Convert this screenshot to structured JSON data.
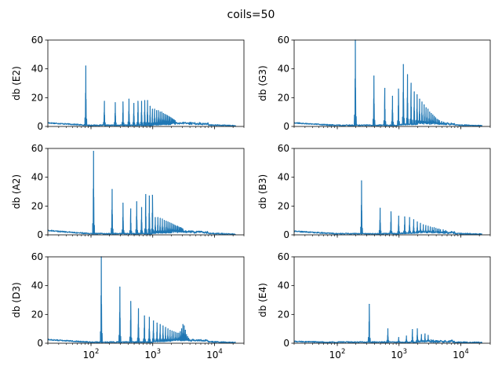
{
  "figure": {
    "title": "coils=50",
    "line_color": "#1f77b4"
  },
  "chart_data": [
    {
      "type": "line",
      "ylabel": "db (E2)",
      "xscale": "log",
      "xlim": [
        20,
        30000
      ],
      "ylim": [
        0,
        60
      ],
      "yticks": [
        0,
        20,
        40,
        60
      ],
      "xticks": [
        100,
        1000,
        10000
      ],
      "xticklabels_visible": false,
      "grid": false,
      "noise": [
        2.5,
        0.5,
        1.8
      ],
      "peaks": [
        {
          "x": 82.4,
          "y": 42
        },
        {
          "x": 164.8,
          "y": 17.5
        },
        {
          "x": 247.2,
          "y": 16.5
        },
        {
          "x": 329.6,
          "y": 17
        },
        {
          "x": 412,
          "y": 19
        },
        {
          "x": 494.4,
          "y": 16
        },
        {
          "x": 576.8,
          "y": 17.5
        },
        {
          "x": 659.2,
          "y": 17.5
        },
        {
          "x": 741.6,
          "y": 18
        },
        {
          "x": 824,
          "y": 18
        },
        {
          "x": 906.4,
          "y": 14
        },
        {
          "x": 988.8,
          "y": 12
        },
        {
          "x": 1071.2,
          "y": 12
        },
        {
          "x": 1153.6,
          "y": 11
        },
        {
          "x": 1236,
          "y": 11
        },
        {
          "x": 1318.4,
          "y": 10
        },
        {
          "x": 1400.8,
          "y": 10
        },
        {
          "x": 1483.2,
          "y": 9
        },
        {
          "x": 1565.6,
          "y": 8.5
        },
        {
          "x": 1648,
          "y": 8
        },
        {
          "x": 1730.4,
          "y": 7.5
        },
        {
          "x": 1812.8,
          "y": 7
        },
        {
          "x": 1895.2,
          "y": 6.5
        },
        {
          "x": 1977.6,
          "y": 6
        },
        {
          "x": 2060,
          "y": 5.5
        },
        {
          "x": 2142.4,
          "y": 5
        },
        {
          "x": 2224.8,
          "y": 4.5
        },
        {
          "x": 2307.2,
          "y": 4
        }
      ]
    },
    {
      "type": "line",
      "ylabel": "db (G3)",
      "xscale": "log",
      "xlim": [
        20,
        30000
      ],
      "ylim": [
        0,
        60
      ],
      "yticks": [
        0,
        20,
        40,
        60
      ],
      "xticks": [
        100,
        1000,
        10000
      ],
      "xticklabels_visible": false,
      "grid": false,
      "noise": [
        2.5,
        0.5,
        1.8
      ],
      "peaks": [
        {
          "x": 196,
          "y": 60
        },
        {
          "x": 392,
          "y": 35
        },
        {
          "x": 588,
          "y": 26.5
        },
        {
          "x": 784,
          "y": 21
        },
        {
          "x": 980,
          "y": 26
        },
        {
          "x": 1176,
          "y": 43
        },
        {
          "x": 1372,
          "y": 36
        },
        {
          "x": 1568,
          "y": 30
        },
        {
          "x": 1764,
          "y": 24
        },
        {
          "x": 1960,
          "y": 22
        },
        {
          "x": 2156,
          "y": 19
        },
        {
          "x": 2352,
          "y": 17
        },
        {
          "x": 2548,
          "y": 15
        },
        {
          "x": 2744,
          "y": 13
        },
        {
          "x": 2940,
          "y": 12
        },
        {
          "x": 3136,
          "y": 10
        },
        {
          "x": 3332,
          "y": 9
        },
        {
          "x": 3528,
          "y": 8
        },
        {
          "x": 3724,
          "y": 7
        },
        {
          "x": 3920,
          "y": 6
        },
        {
          "x": 4116,
          "y": 5
        },
        {
          "x": 4312,
          "y": 4.5
        },
        {
          "x": 4508,
          "y": 4
        },
        {
          "x": 4900,
          "y": 3.5
        },
        {
          "x": 5292,
          "y": 3
        }
      ]
    },
    {
      "type": "line",
      "ylabel": "db (A2)",
      "xscale": "log",
      "xlim": [
        20,
        30000
      ],
      "ylim": [
        0,
        60
      ],
      "yticks": [
        0,
        20,
        40,
        60
      ],
      "xticks": [
        100,
        1000,
        10000
      ],
      "xticklabels_visible": false,
      "grid": false,
      "noise": [
        3,
        0.5,
        1.8
      ],
      "peaks": [
        {
          "x": 110,
          "y": 58
        },
        {
          "x": 220,
          "y": 31.5
        },
        {
          "x": 330,
          "y": 22
        },
        {
          "x": 440,
          "y": 18
        },
        {
          "x": 550,
          "y": 23
        },
        {
          "x": 660,
          "y": 19
        },
        {
          "x": 770,
          "y": 28
        },
        {
          "x": 880,
          "y": 27
        },
        {
          "x": 990,
          "y": 27.5
        },
        {
          "x": 1100,
          "y": 12
        },
        {
          "x": 1210,
          "y": 12
        },
        {
          "x": 1320,
          "y": 11.5
        },
        {
          "x": 1430,
          "y": 11
        },
        {
          "x": 1540,
          "y": 10
        },
        {
          "x": 1650,
          "y": 9.5
        },
        {
          "x": 1760,
          "y": 9
        },
        {
          "x": 1870,
          "y": 8.5
        },
        {
          "x": 1980,
          "y": 8
        },
        {
          "x": 2090,
          "y": 7.5
        },
        {
          "x": 2200,
          "y": 7
        },
        {
          "x": 2310,
          "y": 6.5
        },
        {
          "x": 2420,
          "y": 6
        },
        {
          "x": 2530,
          "y": 6
        },
        {
          "x": 2640,
          "y": 5.5
        },
        {
          "x": 2750,
          "y": 5
        },
        {
          "x": 2860,
          "y": 5
        },
        {
          "x": 2970,
          "y": 4.5
        },
        {
          "x": 3080,
          "y": 4
        }
      ]
    },
    {
      "type": "line",
      "ylabel": "db (B3)",
      "xscale": "log",
      "xlim": [
        20,
        30000
      ],
      "ylim": [
        0,
        60
      ],
      "yticks": [
        0,
        20,
        40,
        60
      ],
      "xticks": [
        100,
        1000,
        10000
      ],
      "xticklabels_visible": false,
      "grid": false,
      "noise": [
        2.5,
        0.5,
        1.5
      ],
      "peaks": [
        {
          "x": 247,
          "y": 37.5
        },
        {
          "x": 494,
          "y": 18.5
        },
        {
          "x": 741,
          "y": 16
        },
        {
          "x": 988,
          "y": 13
        },
        {
          "x": 1235,
          "y": 12.5
        },
        {
          "x": 1482,
          "y": 12
        },
        {
          "x": 1729,
          "y": 10.5
        },
        {
          "x": 1976,
          "y": 9
        },
        {
          "x": 2223,
          "y": 8
        },
        {
          "x": 2470,
          "y": 7
        },
        {
          "x": 2717,
          "y": 6.5
        },
        {
          "x": 2964,
          "y": 6
        },
        {
          "x": 3211,
          "y": 5.5
        },
        {
          "x": 3458,
          "y": 5
        },
        {
          "x": 3705,
          "y": 5
        },
        {
          "x": 3952,
          "y": 4.5
        },
        {
          "x": 4199,
          "y": 4
        },
        {
          "x": 4446,
          "y": 4
        },
        {
          "x": 4693,
          "y": 3.5
        },
        {
          "x": 5187,
          "y": 3.5
        },
        {
          "x": 5681,
          "y": 3
        }
      ]
    },
    {
      "type": "line",
      "ylabel": "db (D3)",
      "xscale": "log",
      "xlim": [
        20,
        30000
      ],
      "ylim": [
        0,
        60
      ],
      "yticks": [
        0,
        20,
        40,
        60
      ],
      "xticks": [
        100,
        1000,
        10000
      ],
      "xticklabels": [
        "10^2",
        "10^3",
        "10^4"
      ],
      "xticklabels_visible": true,
      "grid": false,
      "noise": [
        2.5,
        0.5,
        1.8
      ],
      "peaks": [
        {
          "x": 146.8,
          "y": 60
        },
        {
          "x": 293.6,
          "y": 39
        },
        {
          "x": 440.4,
          "y": 29
        },
        {
          "x": 587.2,
          "y": 24
        },
        {
          "x": 734,
          "y": 19
        },
        {
          "x": 880.8,
          "y": 18
        },
        {
          "x": 1027.6,
          "y": 15.5
        },
        {
          "x": 1174.4,
          "y": 14
        },
        {
          "x": 1321.2,
          "y": 13
        },
        {
          "x": 1468,
          "y": 12
        },
        {
          "x": 1614.8,
          "y": 11
        },
        {
          "x": 1761.6,
          "y": 10
        },
        {
          "x": 1908.4,
          "y": 9
        },
        {
          "x": 2055.2,
          "y": 8.5
        },
        {
          "x": 2202,
          "y": 8
        },
        {
          "x": 2348.8,
          "y": 7.5
        },
        {
          "x": 2495.6,
          "y": 7
        },
        {
          "x": 2642.4,
          "y": 7
        },
        {
          "x": 2789.2,
          "y": 8
        },
        {
          "x": 2936,
          "y": 10
        },
        {
          "x": 3082.8,
          "y": 13
        },
        {
          "x": 3229.6,
          "y": 12
        },
        {
          "x": 3376.4,
          "y": 9
        },
        {
          "x": 3523.2,
          "y": 6
        },
        {
          "x": 3670,
          "y": 4.5
        },
        {
          "x": 3816.8,
          "y": 3.5
        }
      ]
    },
    {
      "type": "line",
      "ylabel": "db (E4)",
      "xscale": "log",
      "xlim": [
        20,
        30000
      ],
      "ylim": [
        0,
        60
      ],
      "yticks": [
        0,
        20,
        40,
        60
      ],
      "xticks": [
        100,
        1000,
        10000
      ],
      "xticklabels": [
        "10^2",
        "10^3",
        "10^4"
      ],
      "xticklabels_visible": true,
      "grid": false,
      "noise": [
        1.2,
        0.5,
        0.8
      ],
      "peaks": [
        {
          "x": 329.6,
          "y": 27
        },
        {
          "x": 659.2,
          "y": 10
        },
        {
          "x": 988.8,
          "y": 4
        },
        {
          "x": 1318.4,
          "y": 5
        },
        {
          "x": 1648,
          "y": 9.5
        },
        {
          "x": 1977.6,
          "y": 10
        },
        {
          "x": 2307.2,
          "y": 6
        },
        {
          "x": 2636.8,
          "y": 6.5
        },
        {
          "x": 2966.4,
          "y": 5.5
        },
        {
          "x": 3296,
          "y": 2.5
        },
        {
          "x": 3625.6,
          "y": 2
        },
        {
          "x": 3955.2,
          "y": 1.8
        },
        {
          "x": 4284.8,
          "y": 1.5
        }
      ]
    }
  ]
}
